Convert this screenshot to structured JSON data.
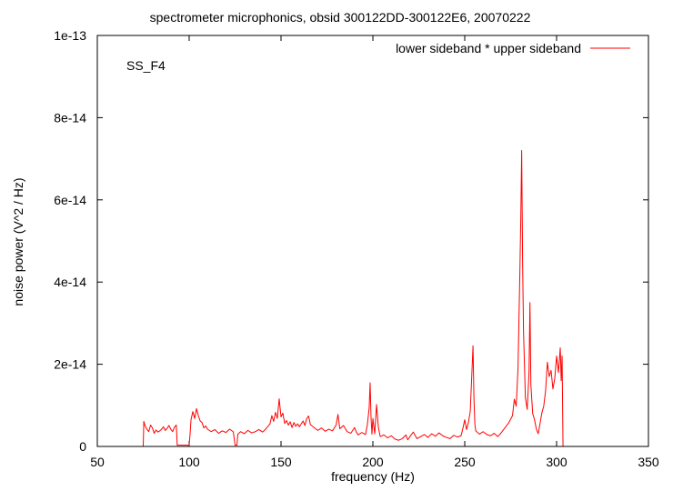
{
  "chart_data": {
    "type": "line",
    "title": "spectrometer microphonics, obsid 300122DD-300122E6, 20070222",
    "xlabel": "frequency (Hz)",
    "ylabel": "noise power (V^2 / Hz)",
    "annotation": "SS_F4",
    "xlim": [
      50,
      350
    ],
    "ylim": [
      0,
      1e-13
    ],
    "x_ticks": [
      50,
      100,
      150,
      200,
      250,
      300,
      350
    ],
    "x_tick_labels": [
      "50",
      "100",
      "150",
      "200",
      "250",
      "300",
      "350"
    ],
    "y_ticks": [
      0,
      2e-14,
      4e-14,
      6e-14,
      8e-14,
      1e-13
    ],
    "y_tick_labels": [
      "0",
      "2e-14",
      "4e-14",
      "6e-14",
      "8e-14",
      "1e-13"
    ],
    "grid": false,
    "legend_position": "top-right",
    "series": [
      {
        "name": "lower sideband * upper sideband",
        "color": "#ff0000",
        "points": [
          [
            50,
            0
          ],
          [
            75,
            0
          ],
          [
            75.3,
            6.1e-15
          ],
          [
            76,
            5e-15
          ],
          [
            77,
            4.2e-15
          ],
          [
            78,
            3.6e-15
          ],
          [
            79,
            5.2e-15
          ],
          [
            80,
            4.5e-15
          ],
          [
            81,
            3.2e-15
          ],
          [
            82,
            4e-15
          ],
          [
            83,
            3.5e-15
          ],
          [
            84,
            3.8e-15
          ],
          [
            85,
            4.2e-15
          ],
          [
            86,
            4.8e-15
          ],
          [
            87,
            3.9e-15
          ],
          [
            88,
            4.4e-15
          ],
          [
            89,
            5.1e-15
          ],
          [
            90,
            4.2e-15
          ],
          [
            91,
            3.6e-15
          ],
          [
            92,
            4.7e-15
          ],
          [
            93,
            5.2e-15
          ],
          [
            93.5,
            3e-16
          ],
          [
            100,
            3e-16
          ],
          [
            100.5,
            3e-15
          ],
          [
            101,
            6.5e-15
          ],
          [
            102,
            8.5e-15
          ],
          [
            103,
            6.8e-15
          ],
          [
            104,
            9.2e-15
          ],
          [
            105,
            7.5e-15
          ],
          [
            106,
            6.2e-15
          ],
          [
            107,
            5.8e-15
          ],
          [
            108,
            4.5e-15
          ],
          [
            109,
            5e-15
          ],
          [
            110,
            4.2e-15
          ],
          [
            112,
            3.6e-15
          ],
          [
            114,
            4.1e-15
          ],
          [
            116,
            3.2e-15
          ],
          [
            118,
            3.8e-15
          ],
          [
            120,
            3.4e-15
          ],
          [
            122,
            4.2e-15
          ],
          [
            124,
            3.6e-15
          ],
          [
            125,
            3e-16
          ],
          [
            126,
            3e-16
          ],
          [
            126.5,
            3e-15
          ],
          [
            128,
            3.6e-15
          ],
          [
            130,
            3.1e-15
          ],
          [
            132,
            3.9e-15
          ],
          [
            134,
            3.3e-15
          ],
          [
            136,
            3.6e-15
          ],
          [
            138,
            4.1e-15
          ],
          [
            140,
            3.5e-15
          ],
          [
            142,
            4.4e-15
          ],
          [
            144,
            5.5e-15
          ],
          [
            145,
            7.5e-15
          ],
          [
            146,
            6.1e-15
          ],
          [
            147,
            8.3e-15
          ],
          [
            148,
            6.8e-15
          ],
          [
            149,
            1.16e-14
          ],
          [
            150,
            7.2e-15
          ],
          [
            151,
            8.1e-15
          ],
          [
            152,
            5.6e-15
          ],
          [
            153,
            6.3e-15
          ],
          [
            154,
            5.2e-15
          ],
          [
            155,
            6e-15
          ],
          [
            156,
            4.6e-15
          ],
          [
            157,
            5.8e-15
          ],
          [
            158,
            4.9e-15
          ],
          [
            159,
            5.5e-15
          ],
          [
            160,
            4.8e-15
          ],
          [
            162,
            6.2e-15
          ],
          [
            163,
            5.1e-15
          ],
          [
            164,
            6.8e-15
          ],
          [
            165,
            7.4e-15
          ],
          [
            166,
            5.3e-15
          ],
          [
            168,
            4.6e-15
          ],
          [
            170,
            3.9e-15
          ],
          [
            172,
            4.5e-15
          ],
          [
            174,
            3.7e-15
          ],
          [
            176,
            4.2e-15
          ],
          [
            178,
            3.8e-15
          ],
          [
            180,
            5.2e-15
          ],
          [
            181,
            7.8e-15
          ],
          [
            182,
            4.3e-15
          ],
          [
            184,
            5.1e-15
          ],
          [
            186,
            3.6e-15
          ],
          [
            188,
            3.2e-15
          ],
          [
            190,
            4.6e-15
          ],
          [
            191,
            3.5e-15
          ],
          [
            192,
            2.8e-15
          ],
          [
            194,
            3.4e-15
          ],
          [
            196,
            2.9e-15
          ],
          [
            197,
            5.3e-15
          ],
          [
            198,
            9.5e-15
          ],
          [
            198.5,
            1.55e-14
          ],
          [
            199,
            7e-15
          ],
          [
            199.5,
            3e-15
          ],
          [
            200,
            6.8e-15
          ],
          [
            201,
            3.1e-15
          ],
          [
            202,
            1.02e-14
          ],
          [
            203,
            4.6e-15
          ],
          [
            204,
            2.4e-15
          ],
          [
            206,
            2.8e-15
          ],
          [
            208,
            2.1e-15
          ],
          [
            210,
            2.6e-15
          ],
          [
            212,
            1.8e-15
          ],
          [
            214,
            1.5e-15
          ],
          [
            216,
            1.9e-15
          ],
          [
            218,
            2.8e-15
          ],
          [
            219,
            1.6e-15
          ],
          [
            220,
            2.3e-15
          ],
          [
            222,
            3.5e-15
          ],
          [
            224,
            1.9e-15
          ],
          [
            226,
            2.4e-15
          ],
          [
            228,
            2.9e-15
          ],
          [
            230,
            2.2e-15
          ],
          [
            232,
            3.1e-15
          ],
          [
            234,
            2.5e-15
          ],
          [
            236,
            3.3e-15
          ],
          [
            238,
            2.6e-15
          ],
          [
            240,
            2.2e-15
          ],
          [
            242,
            1.9e-15
          ],
          [
            244,
            2.7e-15
          ],
          [
            246,
            2.3e-15
          ],
          [
            248,
            2.6e-15
          ],
          [
            249,
            4.4e-15
          ],
          [
            250,
            6.5e-15
          ],
          [
            251,
            4.1e-15
          ],
          [
            252,
            5.8e-15
          ],
          [
            253,
            8.5e-15
          ],
          [
            254,
            1.9e-14
          ],
          [
            254.5,
            2.45e-14
          ],
          [
            255,
            1.2e-14
          ],
          [
            255.5,
            5.5e-15
          ],
          [
            256,
            3.8e-15
          ],
          [
            258,
            3e-15
          ],
          [
            260,
            3.6e-15
          ],
          [
            262,
            2.9e-15
          ],
          [
            264,
            2.6e-15
          ],
          [
            266,
            3.2e-15
          ],
          [
            268,
            2.4e-15
          ],
          [
            270,
            3.4e-15
          ],
          [
            272,
            4.6e-15
          ],
          [
            274,
            5.8e-15
          ],
          [
            276,
            7.5e-15
          ],
          [
            277,
            1.15e-14
          ],
          [
            278,
            9.8e-15
          ],
          [
            279,
            1.9e-14
          ],
          [
            280,
            4.2e-14
          ],
          [
            280.5,
            5.5e-14
          ],
          [
            281,
            7.2e-14
          ],
          [
            281.5,
            4.5e-14
          ],
          [
            282,
            2.8e-14
          ],
          [
            283,
            1.2e-14
          ],
          [
            284,
            9e-15
          ],
          [
            285,
            1.8e-14
          ],
          [
            285.5,
            3.5e-14
          ],
          [
            286,
            1.5e-14
          ],
          [
            287,
            8e-15
          ],
          [
            288,
            6.5e-15
          ],
          [
            289,
            4.2e-15
          ],
          [
            290,
            3.1e-15
          ],
          [
            291,
            5.6e-15
          ],
          [
            292,
            8.2e-15
          ],
          [
            293,
            9.8e-15
          ],
          [
            294,
            1.35e-14
          ],
          [
            295,
            2.05e-14
          ],
          [
            296,
            1.7e-14
          ],
          [
            297,
            1.85e-14
          ],
          [
            298,
            1.4e-14
          ],
          [
            299,
            1.65e-14
          ],
          [
            300,
            2.2e-14
          ],
          [
            301,
            1.8e-14
          ],
          [
            302,
            2.4e-14
          ],
          [
            302.5,
            1.6e-14
          ],
          [
            303,
            2.2e-14
          ],
          [
            303.5,
            0
          ],
          [
            350,
            0
          ]
        ]
      }
    ]
  }
}
